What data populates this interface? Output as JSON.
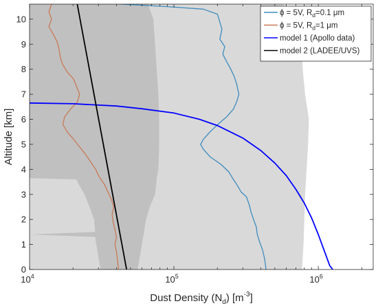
{
  "chart_data": {
    "type": "line",
    "title": "",
    "xlabel": "Dust Density (N",
    "xlabel_sub": "d",
    "xlabel_unit": ") [m",
    "xlabel_sup": "-3",
    "xlabel_end": "]",
    "ylabel": "Altitude [km]",
    "xscale": "log",
    "xlim": [
      10000,
      2400000
    ],
    "ylim": [
      0,
      10.6
    ],
    "x_ticks": [
      {
        "value": 10000,
        "base": "10",
        "exp": "4"
      },
      {
        "value": 100000,
        "base": "10",
        "exp": "5"
      },
      {
        "value": 1000000,
        "base": "10",
        "exp": "6"
      }
    ],
    "y_ticks": [
      "0",
      "1",
      "2",
      "3",
      "4",
      "5",
      "6",
      "7",
      "8",
      "9",
      "10"
    ],
    "grid": false,
    "legend_position": "top-right",
    "legend": [
      {
        "pre": "ϕ = 5V, R",
        "sub": "d",
        "post": "=0.1 μm",
        "color": "#3d8bbd"
      },
      {
        "pre": "ϕ = 5V, R",
        "sub": "d",
        "post": "=1 μm",
        "color": "#c87a57"
      },
      {
        "pre": "model 1 (Apollo data)",
        "sub": "",
        "post": "",
        "color": "#0000ff"
      },
      {
        "pre": "model 2 (LADEE/UVS)",
        "sub": "",
        "post": "",
        "color": "#000000"
      }
    ],
    "bands": [
      {
        "name": "spread for R_d=0.1 um",
        "color": "#d9d9d9",
        "points": [
          {
            "y": 10.6,
            "lo": 10000,
            "hi": 560000
          },
          {
            "y": 10.3,
            "lo": 10000,
            "hi": 720000
          },
          {
            "y": 10.0,
            "lo": 10000,
            "hi": 740000
          },
          {
            "y": 9.0,
            "lo": 10000,
            "hi": 760000
          },
          {
            "y": 8.0,
            "lo": 10000,
            "hi": 780000
          },
          {
            "y": 7.0,
            "lo": 10000,
            "hi": 810000
          },
          {
            "y": 6.0,
            "lo": 10000,
            "hi": 860000
          },
          {
            "y": 5.0,
            "lo": 10000,
            "hi": 850000
          },
          {
            "y": 4.0,
            "lo": 10000,
            "hi": 830000
          },
          {
            "y": 3.0,
            "lo": 10000,
            "hi": 810000
          },
          {
            "y": 2.0,
            "lo": 10000,
            "hi": 800000
          },
          {
            "y": 1.0,
            "lo": 10000,
            "hi": 790000
          },
          {
            "y": 0.5,
            "lo": 10000,
            "hi": 780000
          },
          {
            "y": 0.0,
            "lo": 10000,
            "hi": 770000
          }
        ]
      },
      {
        "name": "spread for R_d=1 um",
        "color": "#c0c0c0",
        "points": [
          {
            "y": 10.6,
            "lo": 10000,
            "hi": 66000
          },
          {
            "y": 10.0,
            "lo": 10000,
            "hi": 72000
          },
          {
            "y": 9.0,
            "lo": 10000,
            "hi": 74000
          },
          {
            "y": 8.0,
            "lo": 10000,
            "hi": 76000
          },
          {
            "y": 7.0,
            "lo": 10000,
            "hi": 78000
          },
          {
            "y": 6.0,
            "lo": 10000,
            "hi": 79000
          },
          {
            "y": 5.0,
            "lo": 10000,
            "hi": 79000
          },
          {
            "y": 4.0,
            "lo": 10000,
            "hi": 78000
          },
          {
            "y": 3.65,
            "lo": 10000,
            "hi": 76000
          },
          {
            "y": 3.6,
            "lo": 21000,
            "hi": 76000
          },
          {
            "y": 3.0,
            "lo": 24000,
            "hi": 74000
          },
          {
            "y": 2.5,
            "lo": 26000,
            "hi": 68000
          },
          {
            "y": 2.0,
            "lo": 28000,
            "hi": 64000
          },
          {
            "y": 1.5,
            "lo": 28500,
            "hi": 62000
          },
          {
            "y": 1.4,
            "lo": 10000,
            "hi": 62000
          },
          {
            "y": 1.3,
            "lo": 28500,
            "hi": 61000
          },
          {
            "y": 1.0,
            "lo": 29000,
            "hi": 60000
          },
          {
            "y": 0.5,
            "lo": 30000,
            "hi": 58000
          },
          {
            "y": 0.0,
            "lo": 31000,
            "hi": 56000
          }
        ]
      }
    ],
    "series": [
      {
        "name": "ϕ = 5V, R_d=0.1 μm",
        "color": "#3d8bbd",
        "points": [
          {
            "x": 43000,
            "y": 10.6
          },
          {
            "x": 90000,
            "y": 10.5
          },
          {
            "x": 160000,
            "y": 10.4
          },
          {
            "x": 200000,
            "y": 10.2
          },
          {
            "x": 205000,
            "y": 10.0
          },
          {
            "x": 215000,
            "y": 9.6
          },
          {
            "x": 208000,
            "y": 9.2
          },
          {
            "x": 225000,
            "y": 8.9
          },
          {
            "x": 218000,
            "y": 8.6
          },
          {
            "x": 232000,
            "y": 8.3
          },
          {
            "x": 248000,
            "y": 8.0
          },
          {
            "x": 262000,
            "y": 7.7
          },
          {
            "x": 272000,
            "y": 7.4
          },
          {
            "x": 282000,
            "y": 7.0
          },
          {
            "x": 272000,
            "y": 6.7
          },
          {
            "x": 258000,
            "y": 6.4
          },
          {
            "x": 232000,
            "y": 6.1
          },
          {
            "x": 202000,
            "y": 5.8
          },
          {
            "x": 178000,
            "y": 5.5
          },
          {
            "x": 160000,
            "y": 5.2
          },
          {
            "x": 153000,
            "y": 5.0
          },
          {
            "x": 160000,
            "y": 4.8
          },
          {
            "x": 178000,
            "y": 4.5
          },
          {
            "x": 212000,
            "y": 4.2
          },
          {
            "x": 240000,
            "y": 3.9
          },
          {
            "x": 258000,
            "y": 3.6
          },
          {
            "x": 272000,
            "y": 3.4
          },
          {
            "x": 292000,
            "y": 3.1
          },
          {
            "x": 318000,
            "y": 2.9
          },
          {
            "x": 332000,
            "y": 2.6
          },
          {
            "x": 342000,
            "y": 2.3
          },
          {
            "x": 356000,
            "y": 2.0
          },
          {
            "x": 372000,
            "y": 1.7
          },
          {
            "x": 378000,
            "y": 1.4
          },
          {
            "x": 392000,
            "y": 1.1
          },
          {
            "x": 410000,
            "y": 0.8
          },
          {
            "x": 422000,
            "y": 0.5
          },
          {
            "x": 428000,
            "y": 0.3
          },
          {
            "x": 432000,
            "y": 0.1
          },
          {
            "x": 435000,
            "y": 0.0
          }
        ]
      },
      {
        "name": "ϕ = 5V, R_d=1 μm",
        "color": "#c87a57",
        "points": [
          {
            "x": 14200,
            "y": 10.6
          },
          {
            "x": 13600,
            "y": 10.3
          },
          {
            "x": 14200,
            "y": 10.0
          },
          {
            "x": 13600,
            "y": 9.7
          },
          {
            "x": 14600,
            "y": 9.4
          },
          {
            "x": 15500,
            "y": 9.1
          },
          {
            "x": 16000,
            "y": 8.8
          },
          {
            "x": 16300,
            "y": 8.5
          },
          {
            "x": 16900,
            "y": 8.2
          },
          {
            "x": 18200,
            "y": 7.9
          },
          {
            "x": 20200,
            "y": 7.6
          },
          {
            "x": 21200,
            "y": 7.3
          },
          {
            "x": 22200,
            "y": 7.0
          },
          {
            "x": 21500,
            "y": 6.7
          },
          {
            "x": 19200,
            "y": 6.4
          },
          {
            "x": 17500,
            "y": 6.1
          },
          {
            "x": 17000,
            "y": 5.8
          },
          {
            "x": 18200,
            "y": 5.5
          },
          {
            "x": 20200,
            "y": 5.2
          },
          {
            "x": 22200,
            "y": 4.9
          },
          {
            "x": 24400,
            "y": 4.6
          },
          {
            "x": 26500,
            "y": 4.3
          },
          {
            "x": 28700,
            "y": 4.0
          },
          {
            "x": 30400,
            "y": 3.7
          },
          {
            "x": 33000,
            "y": 3.4
          },
          {
            "x": 34900,
            "y": 3.1
          },
          {
            "x": 36900,
            "y": 2.8
          },
          {
            "x": 38300,
            "y": 2.5
          },
          {
            "x": 37300,
            "y": 2.2
          },
          {
            "x": 37900,
            "y": 1.9
          },
          {
            "x": 39000,
            "y": 1.6
          },
          {
            "x": 40000,
            "y": 1.3
          },
          {
            "x": 39000,
            "y": 1.0
          },
          {
            "x": 40000,
            "y": 0.7
          },
          {
            "x": 40600,
            "y": 0.4
          },
          {
            "x": 41200,
            "y": 0.1
          },
          {
            "x": 41200,
            "y": 0.0
          }
        ]
      },
      {
        "name": "model 1 (Apollo data)",
        "color": "#0000ff",
        "points": [
          {
            "x": 10000,
            "y": 6.65
          },
          {
            "x": 20000,
            "y": 6.62
          },
          {
            "x": 40000,
            "y": 6.53
          },
          {
            "x": 60000,
            "y": 6.42
          },
          {
            "x": 100000,
            "y": 6.25
          },
          {
            "x": 150000,
            "y": 6.0
          },
          {
            "x": 200000,
            "y": 5.75
          },
          {
            "x": 300000,
            "y": 5.25
          },
          {
            "x": 400000,
            "y": 4.75
          },
          {
            "x": 500000,
            "y": 4.25
          },
          {
            "x": 600000,
            "y": 3.75
          },
          {
            "x": 700000,
            "y": 3.2
          },
          {
            "x": 800000,
            "y": 2.65
          },
          {
            "x": 900000,
            "y": 2.05
          },
          {
            "x": 1000000,
            "y": 1.4
          },
          {
            "x": 1100000,
            "y": 0.75
          },
          {
            "x": 1200000,
            "y": 0.15
          },
          {
            "x": 1260000,
            "y": 0.0
          }
        ]
      },
      {
        "name": "model 2 (LADEE/UVS)",
        "color": "#000000",
        "points": [
          {
            "x": 21400,
            "y": 10.6
          },
          {
            "x": 47000,
            "y": 0.0
          }
        ]
      }
    ]
  }
}
